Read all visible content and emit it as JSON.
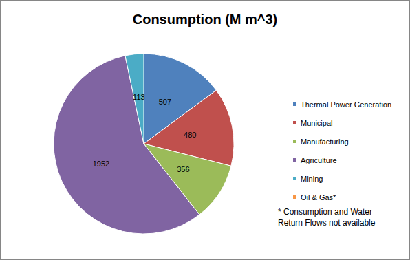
{
  "chart_data": {
    "type": "pie",
    "title": "Consumption (M m^3)",
    "categories": [
      "Thermal Power Generation",
      "Municipal",
      "Manufacturing",
      "Agriculture",
      "Mining",
      "Oil & Gas*"
    ],
    "values": [
      507,
      480,
      356,
      1952,
      113,
      null
    ],
    "colors": [
      "#4f81bd",
      "#c0504d",
      "#9bbb59",
      "#8064a2",
      "#4bacc6",
      "#f79646"
    ],
    "data_labels": true,
    "legend": "right",
    "annotations": [
      "* Consumption and Water Return Flows not available"
    ]
  }
}
